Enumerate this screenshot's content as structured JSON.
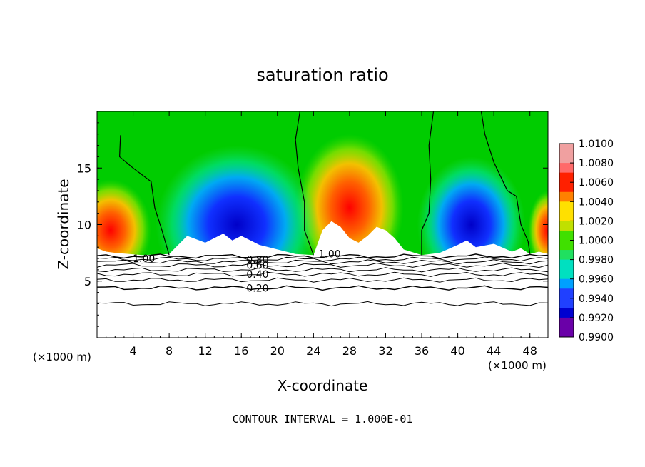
{
  "chart_data": {
    "type": "heatmap",
    "title": "saturation ratio",
    "xlabel": "X-coordinate",
    "ylabel": "Z-coordinate",
    "x_unit": "(×1000 m)",
    "x_unit_2": "(×1000 m)",
    "xlim": [
      0,
      50
    ],
    "ylim": [
      0,
      20
    ],
    "x_ticks": [
      4,
      8,
      12,
      16,
      20,
      24,
      28,
      32,
      36,
      40,
      44,
      48
    ],
    "y_ticks": [
      5,
      10,
      15
    ],
    "footer": "CONTOUR INTERVAL = 1.000E-01",
    "colorbar": {
      "min": 0.99,
      "max": 1.01,
      "labels": [
        "1.0100",
        "1.0080",
        "1.0060",
        "1.0040",
        "1.0020",
        "1.0000",
        "0.9980",
        "0.9960",
        "0.9940",
        "0.9920",
        "0.9900"
      ]
    },
    "contour_labels": [
      {
        "text": "1.00",
        "x": 5.2,
        "y": 7.0
      },
      {
        "text": "1.00",
        "x": 25.8,
        "y": 7.4
      },
      {
        "text": "0.80",
        "x": 17.8,
        "y": 6.9
      },
      {
        "text": "0.60",
        "x": 17.8,
        "y": 6.4
      },
      {
        "text": "0.40",
        "x": 17.8,
        "y": 5.6
      },
      {
        "text": "0.20",
        "x": 17.8,
        "y": 4.4
      }
    ],
    "saturation_boundary_x": [
      [
        2.6,
        17.9
      ],
      [
        2.5,
        16.0
      ],
      [
        4.0,
        15.0
      ],
      [
        6.0,
        13.8
      ],
      [
        6.4,
        11.5
      ],
      [
        7.2,
        9.5
      ],
      [
        8.0,
        7.3
      ]
    ]
  }
}
